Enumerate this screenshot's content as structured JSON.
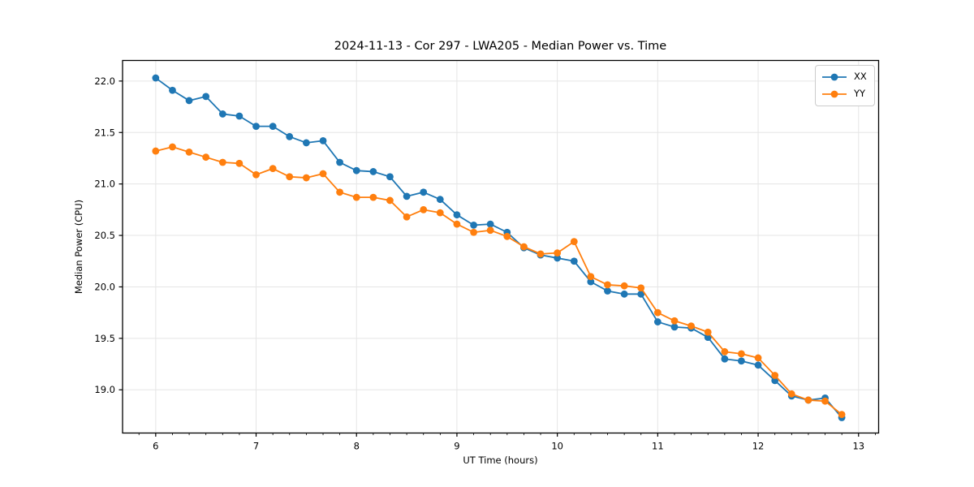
{
  "figure": {
    "background": "#ffffff"
  },
  "chart_data": {
    "type": "line",
    "title": "2024-11-13 - Cor 297 - LWA205 - Median Power vs. Time",
    "xlabel": "UT Time (hours)",
    "ylabel": "Median Power (CPU)",
    "x": [
      6.0,
      6.167,
      6.333,
      6.5,
      6.667,
      6.833,
      7.0,
      7.167,
      7.333,
      7.5,
      7.667,
      7.833,
      8.0,
      8.167,
      8.333,
      8.5,
      8.667,
      8.833,
      9.0,
      9.167,
      9.333,
      9.5,
      9.667,
      9.833,
      10.0,
      10.167,
      10.333,
      10.5,
      10.667,
      10.833,
      11.0,
      11.167,
      11.333,
      11.5,
      11.667,
      11.833,
      12.0,
      12.167,
      12.333,
      12.5,
      12.667,
      12.833
    ],
    "series": [
      {
        "name": "XX",
        "color": "#1f77b4",
        "values": [
          22.03,
          21.91,
          21.81,
          21.85,
          21.68,
          21.66,
          21.56,
          21.56,
          21.46,
          21.4,
          21.42,
          21.21,
          21.13,
          21.12,
          21.07,
          20.88,
          20.92,
          20.85,
          20.7,
          20.6,
          20.61,
          20.53,
          20.38,
          20.31,
          20.28,
          20.25,
          20.05,
          19.96,
          19.93,
          19.93,
          19.66,
          19.61,
          19.6,
          19.51,
          19.3,
          19.28,
          19.24,
          19.09,
          18.94,
          18.9,
          18.92,
          18.73
        ]
      },
      {
        "name": "YY",
        "color": "#ff7f0e",
        "values": [
          21.32,
          21.36,
          21.31,
          21.26,
          21.21,
          21.2,
          21.09,
          21.15,
          21.07,
          21.06,
          21.1,
          20.92,
          20.87,
          20.87,
          20.84,
          20.68,
          20.75,
          20.72,
          20.61,
          20.53,
          20.55,
          20.49,
          20.39,
          20.32,
          20.33,
          20.44,
          20.1,
          20.02,
          20.01,
          19.99,
          19.75,
          19.67,
          19.62,
          19.56,
          19.37,
          19.35,
          19.31,
          19.14,
          18.96,
          18.9,
          18.89,
          18.76
        ]
      }
    ],
    "xlim": [
      5.67,
      13.2
    ],
    "ylim": [
      18.58,
      22.2
    ],
    "xticks": [
      6,
      7,
      8,
      9,
      10,
      11,
      12,
      13
    ],
    "yticks": [
      19.0,
      19.5,
      20.0,
      20.5,
      21.0,
      21.5,
      22.0
    ],
    "x_minor_step": 0.16667,
    "grid": true,
    "grid_color": "#e5e5e5",
    "frame_color": "#000000",
    "marker": "circle",
    "marker_size": 4.4,
    "line_width": 1.8,
    "legend": {
      "position": "upper right",
      "labels": [
        "XX",
        "YY"
      ]
    }
  }
}
